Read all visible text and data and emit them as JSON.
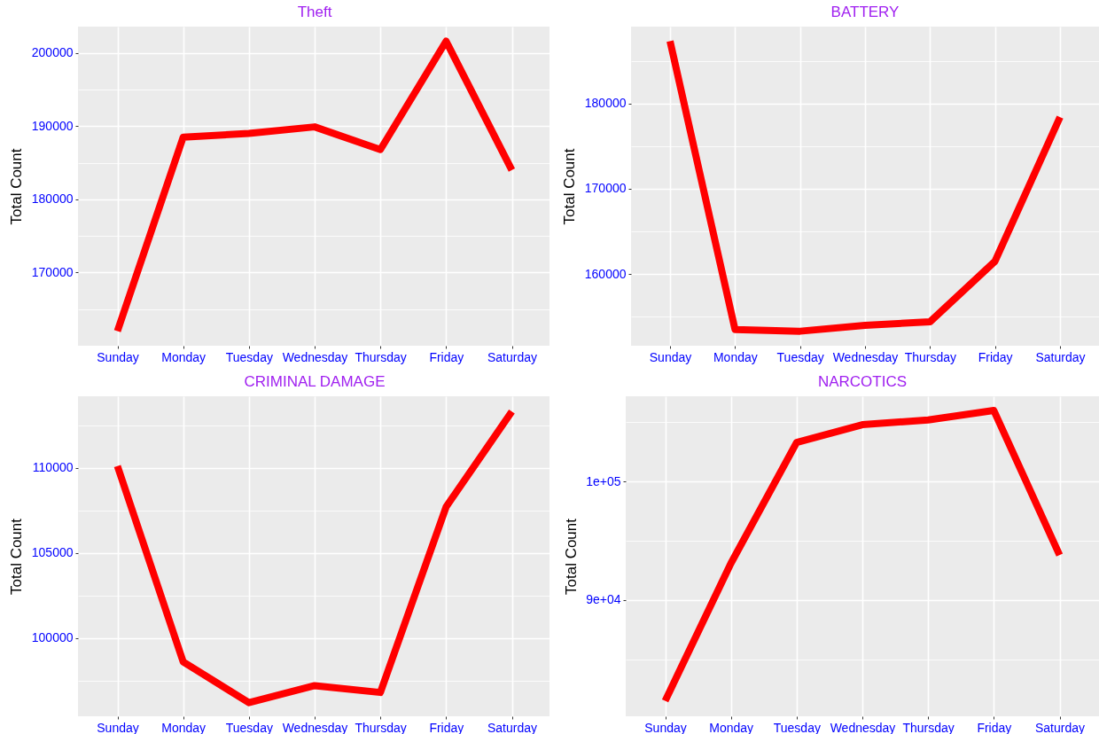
{
  "chart_data": [
    {
      "type": "line",
      "title": "Theft",
      "ylabel": "Total Count",
      "categories": [
        "Sunday",
        "Monday",
        "Tuesday",
        "Wednesday",
        "Thursday",
        "Friday",
        "Saturday"
      ],
      "series": [
        {
          "color": "#ff0000",
          "values": [
            162000,
            188500,
            189000,
            189900,
            186800,
            201600,
            184000
          ]
        }
      ],
      "ylim": [
        160000,
        203600
      ],
      "yticks": [
        {
          "value": 165000,
          "label": null
        },
        170000,
        {
          "value": 175000,
          "label": null
        },
        180000,
        {
          "value": 185000,
          "label": null
        },
        190000,
        {
          "value": 195000,
          "label": null
        },
        200000
      ],
      "grid": true
    },
    {
      "type": "line",
      "title": "BATTERY",
      "ylabel": "Total Count",
      "categories": [
        "Sunday",
        "Monday",
        "Tuesday",
        "Wednesday",
        "Thursday",
        "Friday",
        "Saturday"
      ],
      "series": [
        {
          "color": "#ff0000",
          "values": [
            187300,
            153500,
            153300,
            154000,
            154400,
            161500,
            178400
          ]
        }
      ],
      "ylim": [
        151600,
        189000
      ],
      "yticks": [
        {
          "value": 155000,
          "label": null
        },
        160000,
        {
          "value": 165000,
          "label": null
        },
        170000,
        {
          "value": 175000,
          "label": null
        },
        180000,
        {
          "value": 185000,
          "label": null
        }
      ],
      "grid": true
    },
    {
      "type": "line",
      "title": "CRIMINAL DAMAGE",
      "ylabel": "Total Count",
      "categories": [
        "Sunday",
        "Monday",
        "Tuesday",
        "Wednesday",
        "Thursday",
        "Friday",
        "Saturday"
      ],
      "series": [
        {
          "color": "#ff0000",
          "values": [
            110100,
            98600,
            96200,
            97200,
            96800,
            107700,
            113300
          ]
        }
      ],
      "ylim": [
        95400,
        114200
      ],
      "yticks": [
        {
          "value": 97500,
          "label": null
        },
        100000,
        {
          "value": 102500,
          "label": null
        },
        105000,
        {
          "value": 107500,
          "label": null
        },
        110000,
        {
          "value": 112500,
          "label": null
        }
      ],
      "grid": true
    },
    {
      "type": "line",
      "title": "NARCOTICS",
      "ylabel": "Total Count",
      "categories": [
        "Sunday",
        "Monday",
        "Tuesday",
        "Wednesday",
        "Thursday",
        "Friday",
        "Saturday"
      ],
      "series": [
        {
          "color": "#ff0000",
          "values": [
            81500,
            93100,
            103300,
            104800,
            105200,
            106000,
            93800
          ]
        }
      ],
      "ylim": [
        80200,
        107200
      ],
      "yticks": [
        {
          "value": 85000,
          "label": null
        },
        {
          "value": 90000,
          "label": "9e+04"
        },
        {
          "value": 95000,
          "label": null
        },
        {
          "value": 100000,
          "label": "1e+05"
        },
        {
          "value": 105000,
          "label": null
        }
      ],
      "grid": true
    }
  ]
}
